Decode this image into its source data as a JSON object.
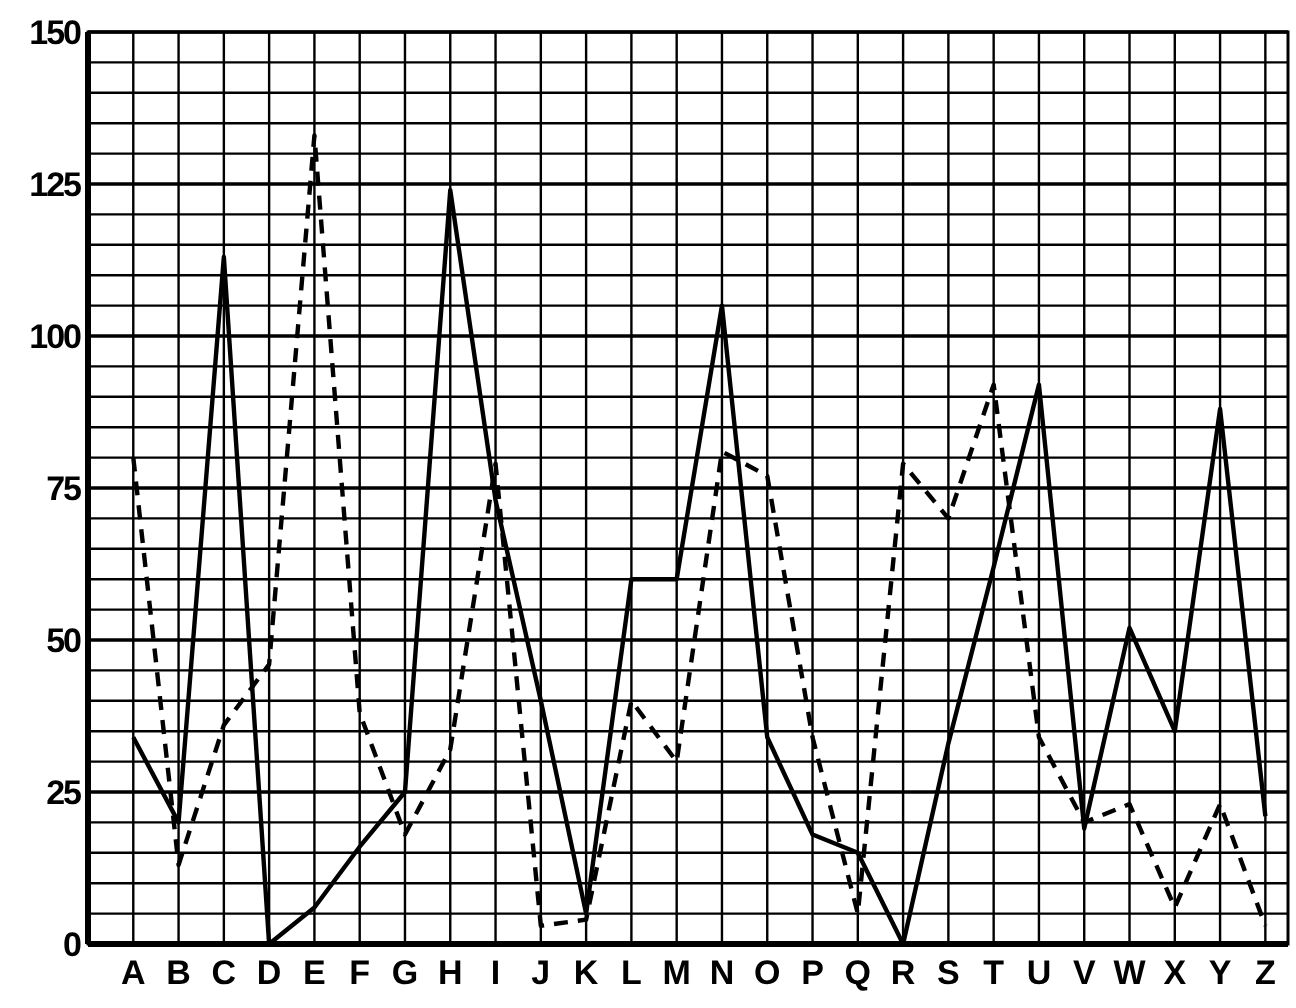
{
  "chart_data": {
    "type": "line",
    "categories": [
      "A",
      "B",
      "C",
      "D",
      "E",
      "F",
      "G",
      "H",
      "I",
      "J",
      "K",
      "L",
      "M",
      "N",
      "O",
      "P",
      "Q",
      "R",
      "S",
      "T",
      "U",
      "V",
      "W",
      "X",
      "Y",
      "Z"
    ],
    "series": [
      {
        "color": "#000000",
        "line_style": "solid",
        "values": [
          34,
          20,
          113,
          0,
          6,
          16,
          25,
          124,
          73,
          40,
          5,
          60,
          60,
          105,
          34,
          18,
          15,
          0,
          33,
          62,
          92,
          19,
          52,
          35,
          88,
          21
        ]
      },
      {
        "color": "#000000",
        "line_style": "dashed",
        "values": [
          80,
          13,
          36,
          46,
          133,
          38,
          18,
          32,
          79,
          3,
          4,
          40,
          30,
          81,
          77,
          34,
          5,
          79,
          70,
          92,
          34,
          20,
          23,
          6,
          23,
          3
        ]
      }
    ],
    "ylim": [
      0,
      150
    ],
    "yticks": [
      0,
      {
        "value": 5,
        "label": null
      },
      {
        "value": 10,
        "label": null
      },
      {
        "value": 15,
        "label": null
      },
      {
        "value": 20,
        "label": null
      },
      25,
      {
        "value": 30,
        "label": null
      },
      {
        "value": 35,
        "label": null
      },
      {
        "value": 40,
        "label": null
      },
      {
        "value": 45,
        "label": null
      },
      50,
      {
        "value": 55,
        "label": null
      },
      {
        "value": 60,
        "label": null
      },
      {
        "value": 65,
        "label": null
      },
      {
        "value": 70,
        "label": null
      },
      75,
      {
        "value": 80,
        "label": null
      },
      {
        "value": 85,
        "label": null
      },
      {
        "value": 90,
        "label": null
      },
      {
        "value": 95,
        "label": null
      },
      100,
      {
        "value": 105,
        "label": null
      },
      {
        "value": 110,
        "label": null
      },
      {
        "value": 115,
        "label": null
      },
      {
        "value": 120,
        "label": null
      },
      125,
      {
        "value": 130,
        "label": null
      },
      {
        "value": 135,
        "label": null
      },
      {
        "value": 140,
        "label": null
      },
      {
        "value": 145,
        "label": null
      },
      150
    ],
    "grid": true
  }
}
